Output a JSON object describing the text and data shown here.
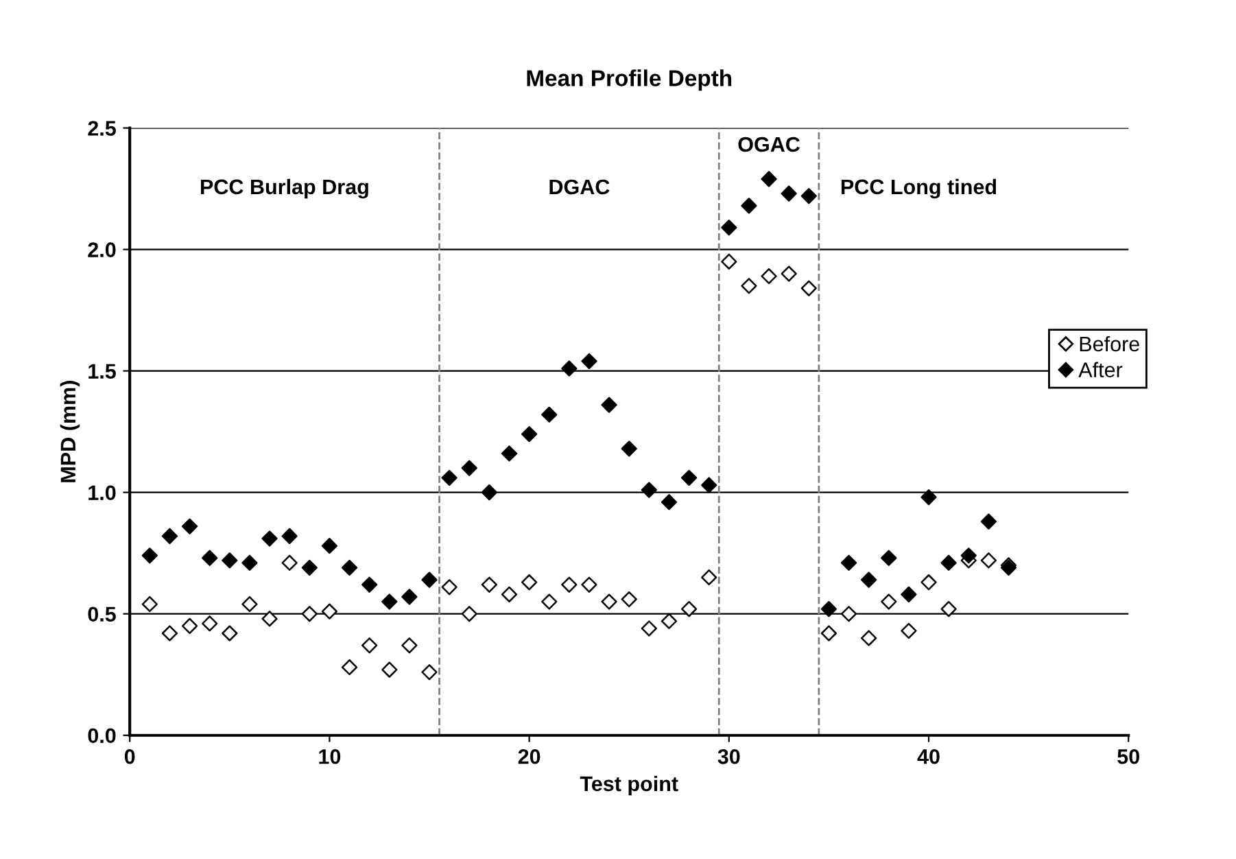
{
  "chart_data": {
    "type": "scatter",
    "title": "Mean Profile Depth",
    "xlabel": "Test point",
    "ylabel": "MPD (mm)",
    "x": [
      1,
      2,
      3,
      4,
      5,
      6,
      7,
      8,
      9,
      10,
      11,
      12,
      13,
      14,
      15,
      16,
      17,
      18,
      19,
      20,
      21,
      22,
      23,
      24,
      25,
      26,
      27,
      28,
      29,
      30,
      31,
      32,
      33,
      34,
      35,
      36,
      37,
      38,
      39,
      40,
      41,
      42,
      43,
      44
    ],
    "series": [
      {
        "name": "Before",
        "color": "#ffffff",
        "values": [
          0.54,
          0.42,
          0.45,
          0.46,
          0.42,
          0.54,
          0.48,
          0.71,
          0.5,
          0.51,
          0.28,
          0.37,
          0.27,
          0.37,
          0.26,
          0.61,
          0.5,
          0.62,
          0.58,
          0.63,
          0.55,
          0.62,
          0.62,
          0.55,
          0.56,
          0.44,
          0.47,
          0.52,
          0.65,
          1.95,
          1.85,
          1.89,
          1.9,
          1.84,
          0.42,
          0.5,
          0.4,
          0.55,
          0.43,
          0.63,
          0.52,
          0.72,
          0.72,
          0.7
        ]
      },
      {
        "name": "After",
        "color": "#000000",
        "values": [
          0.74,
          0.82,
          0.86,
          0.73,
          0.72,
          0.71,
          0.81,
          0.82,
          0.69,
          0.78,
          0.69,
          0.62,
          0.55,
          0.57,
          0.64,
          1.06,
          1.1,
          1.0,
          1.16,
          1.24,
          1.32,
          1.51,
          1.54,
          1.36,
          1.18,
          1.01,
          0.96,
          1.06,
          1.03,
          2.09,
          2.18,
          2.29,
          2.23,
          2.22,
          0.52,
          0.71,
          0.64,
          0.73,
          0.58,
          0.98,
          0.71,
          0.74,
          0.88,
          0.69
        ]
      }
    ],
    "marker": "diamond",
    "xlim": [
      0,
      50
    ],
    "xticks": [
      0,
      10,
      20,
      30,
      40,
      50
    ],
    "ylim": [
      0,
      2.5
    ],
    "yticks": [
      {
        "value": 0,
        "label": "0.0"
      },
      {
        "value": 0.5,
        "label": "0.5"
      },
      {
        "value": 1,
        "label": "1.0"
      },
      {
        "value": 1.5,
        "label": "1.5"
      },
      {
        "value": 2,
        "label": "2.0"
      },
      {
        "value": 2.5,
        "label": "2.5"
      }
    ],
    "grid": "y",
    "legend": "right",
    "ref_lines": [
      {
        "axis": "x",
        "value": 15.5,
        "color": "#808080",
        "line_style": "dashed"
      },
      {
        "axis": "x",
        "value": 29.5,
        "color": "#808080",
        "line_style": "dashed"
      },
      {
        "axis": "x",
        "value": 34.5,
        "color": "#808080",
        "line_style": "dashed"
      }
    ],
    "annotations": [
      "PCC Burlap Drag",
      "DGAC",
      "OGAC",
      "PCC Long tined"
    ]
  }
}
